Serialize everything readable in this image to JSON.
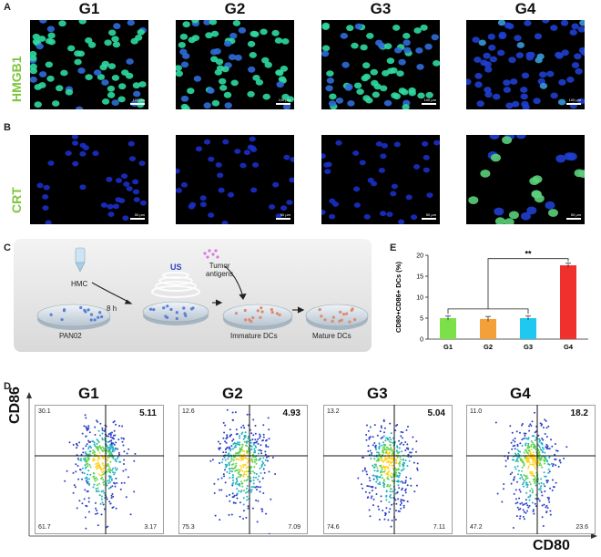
{
  "panel_labels": {
    "a": "A",
    "b": "B",
    "c": "C",
    "d": "D",
    "e": "E"
  },
  "groups": [
    "G1",
    "G2",
    "G3",
    "G4"
  ],
  "row_labels": {
    "hmgb1": "HMGB1",
    "crt": "CRT"
  },
  "scale": {
    "hmgb1": "100 μm",
    "crt": "50 μm"
  },
  "schema": {
    "hmc": "HMC",
    "time": "8 h",
    "us": "US",
    "tumor_antigens": "Tumor\nantigens",
    "pan02": "PAN02",
    "immature": "Immature DCs",
    "mature": "Mature DCs"
  },
  "flow": {
    "y_axis_label": "CD86",
    "x_axis_label": "CD80",
    "plots": [
      {
        "group": "G1",
        "ul": "30.1",
        "ur": "5.11",
        "ll": "61.7",
        "lr": "3.17"
      },
      {
        "group": "G2",
        "ul": "12.6",
        "ur": "4.93",
        "ll": "75.3",
        "lr": "7.09"
      },
      {
        "group": "G3",
        "ul": "13.2",
        "ur": "5.04",
        "ll": "74.6",
        "lr": "7.11"
      },
      {
        "group": "G4",
        "ul": "11.0",
        "ur": "18.2",
        "ll": "47.2",
        "lr": "23.6"
      }
    ]
  },
  "chart_data": {
    "type": "bar",
    "categories": [
      "G1",
      "G2",
      "G3",
      "G4"
    ],
    "values": [
      5.0,
      4.8,
      5.0,
      17.6
    ],
    "errors": [
      0.5,
      0.6,
      0.5,
      0.5
    ],
    "colors": [
      "#7be04a",
      "#f4a03a",
      "#1ec8f0",
      "#f0302c"
    ],
    "ylabel": "CD80+CD86+ DCs (%)",
    "ylim": [
      0,
      20
    ],
    "yticks": [
      0,
      5,
      10,
      15,
      20
    ],
    "significance": "**"
  }
}
